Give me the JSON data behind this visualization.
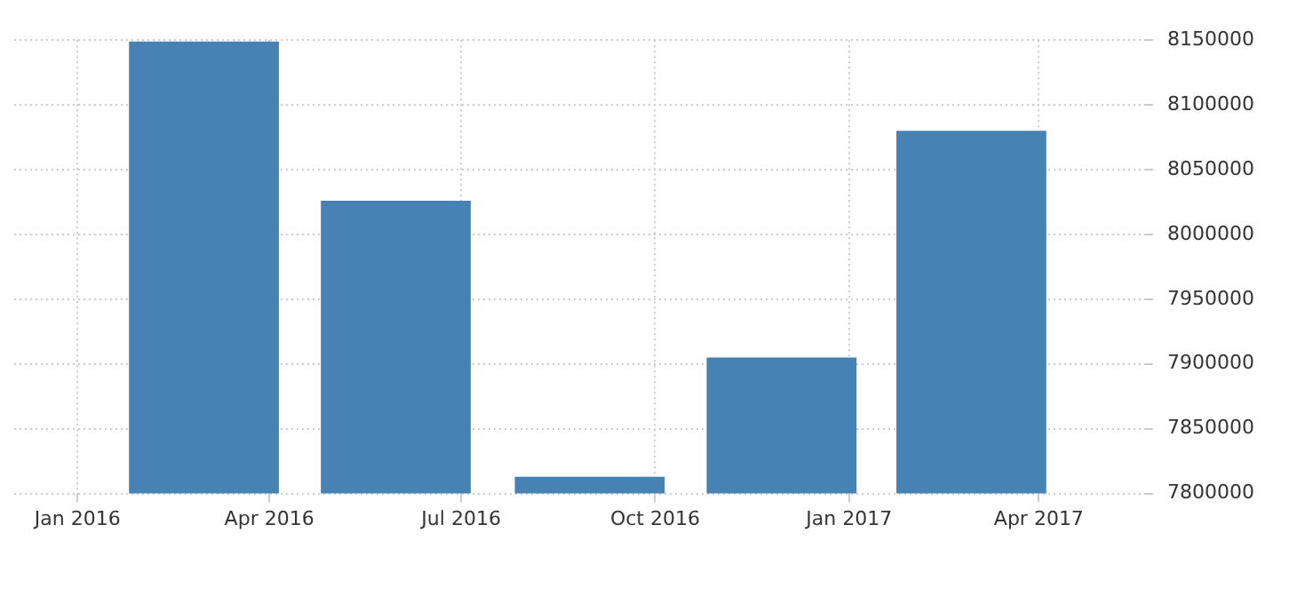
{
  "chart_data": {
    "type": "bar",
    "x": [
      "2016-03-01",
      "2016-05-31",
      "2016-08-31",
      "2016-11-30",
      "2017-02-28"
    ],
    "values": [
      8149000,
      8026000,
      7813000,
      7905000,
      8080000
    ],
    "color": "#4682b4",
    "xlim": [
      "2015-12-02",
      "2017-05-21"
    ],
    "xticks": [
      {
        "value": "2016-01-01",
        "label": "Jan 2016"
      },
      {
        "value": "2016-04-01",
        "label": "Apr 2016"
      },
      {
        "value": "2016-07-01",
        "label": "Jul 2016"
      },
      {
        "value": "2016-10-01",
        "label": "Oct 2016"
      },
      {
        "value": "2017-01-01",
        "label": "Jan 2017"
      },
      {
        "value": "2017-04-01",
        "label": "Apr 2017"
      }
    ],
    "ylim": [
      7800000,
      8150000
    ],
    "yticks": [
      7800000,
      7850000,
      7900000,
      7950000,
      8000000,
      8050000,
      8100000,
      8150000
    ],
    "grid": true,
    "legend": false
  }
}
